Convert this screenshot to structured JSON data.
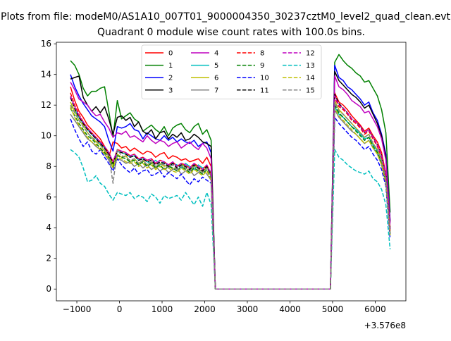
{
  "chart_data": {
    "type": "line",
    "suptitle": "Plots from file: modeM0/AS1A10_007T01_9000004350_30237cztM0_level2_quad_clean.evt",
    "title": "Quadrant 0 module wise count rates with 100.0s bins.",
    "xlabel": "",
    "ylabel": "",
    "x_offset_label": "+3.576e8",
    "xlim": [
      -1480,
      6720
    ],
    "ylim": [
      -0.77,
      16.1
    ],
    "x_ticks": [
      -1000,
      0,
      1000,
      2000,
      3000,
      4000,
      5000,
      6000
    ],
    "y_ticks": [
      0,
      2,
      4,
      6,
      8,
      10,
      12,
      14,
      16
    ],
    "grid": false,
    "legend_position": "top-center",
    "legend_columns": 4,
    "x_segments": {
      "first": {
        "start": -1150,
        "step": 100,
        "count": 34
      },
      "gap_zero": [
        2250,
        4950
      ],
      "second": {
        "start": 4950,
        "step": 100,
        "count": 15
      }
    },
    "series": [
      {
        "name": "0",
        "color": "#ff0000",
        "dash": "solid",
        "seg1": [
          13.2,
          12.3,
          11.6,
          11.2,
          10.7,
          10.4,
          10.1,
          9.8,
          9.3,
          8.6,
          9.6,
          9.5,
          9.2,
          9.3,
          9.0,
          9.2,
          9.0,
          8.8,
          9.0,
          8.9,
          8.6,
          8.8,
          8.9,
          8.5,
          8.7,
          8.6,
          8.4,
          8.5,
          8.3,
          8.4,
          8.5,
          8.2,
          8.6,
          8.0
        ],
        "seg2": [
          0,
          12.8,
          12.2,
          12.0,
          11.7,
          11.3,
          11.0,
          10.7,
          10.3,
          10.5,
          10.0,
          9.6,
          8.9,
          7.5,
          4.0
        ]
      },
      {
        "name": "1",
        "color": "#008000",
        "dash": "solid",
        "seg1": [
          14.9,
          14.6,
          14.0,
          13.1,
          12.6,
          12.9,
          12.9,
          13.1,
          13.2,
          11.6,
          9.9,
          12.3,
          11.1,
          11.3,
          11.5,
          11.1,
          10.9,
          10.3,
          10.5,
          10.7,
          10.4,
          10.2,
          10.6,
          10.0,
          10.5,
          10.7,
          10.8,
          10.4,
          10.2,
          10.6,
          10.8,
          10.1,
          10.4,
          9.7
        ],
        "seg2": [
          0,
          14.8,
          15.3,
          14.9,
          14.6,
          14.4,
          14.1,
          13.9,
          13.5,
          13.6,
          13.1,
          12.6,
          11.7,
          10.2,
          5.0
        ]
      },
      {
        "name": "2",
        "color": "#0000ff",
        "dash": "solid",
        "seg1": [
          14.0,
          13.2,
          12.6,
          12.1,
          11.7,
          11.3,
          11.1,
          10.9,
          10.6,
          9.7,
          9.0,
          10.6,
          10.5,
          10.6,
          10.8,
          10.4,
          10.3,
          9.8,
          10.2,
          10.0,
          9.8,
          9.7,
          10.0,
          9.7,
          9.9,
          9.6,
          9.8,
          9.6,
          9.5,
          9.7,
          9.3,
          9.5,
          9.6,
          8.9
        ],
        "seg2": [
          0,
          14.6,
          13.8,
          13.6,
          13.2,
          13.0,
          12.7,
          12.4,
          12.0,
          12.2,
          11.5,
          11.0,
          10.1,
          8.8,
          4.5
        ]
      },
      {
        "name": "3",
        "color": "#000000",
        "dash": "solid",
        "seg1": [
          13.7,
          13.8,
          13.9,
          12.5,
          12.0,
          11.6,
          11.9,
          11.5,
          11.9,
          11.1,
          10.1,
          11.2,
          11.3,
          11.0,
          11.2,
          10.6,
          10.9,
          10.3,
          10.1,
          10.4,
          9.8,
          10.2,
          10.3,
          9.8,
          10.1,
          9.9,
          10.2,
          9.7,
          9.8,
          10.1,
          9.9,
          9.6,
          9.5,
          9.3
        ],
        "seg2": [
          0,
          14.2,
          13.6,
          13.3,
          13.0,
          12.7,
          12.5,
          12.2,
          11.8,
          12.0,
          11.4,
          10.8,
          10.0,
          8.6,
          4.4
        ]
      },
      {
        "name": "4",
        "color": "#bf00bf",
        "dash": "solid",
        "seg1": [
          13.5,
          13.0,
          12.4,
          12.2,
          12.0,
          11.6,
          11.3,
          11.4,
          10.9,
          10.5,
          9.9,
          10.2,
          10.1,
          10.3,
          9.9,
          10.0,
          9.8,
          9.6,
          10.0,
          9.7,
          9.5,
          9.7,
          9.6,
          9.3,
          9.5,
          9.6,
          9.2,
          9.4,
          9.6,
          9.3,
          9.1,
          9.5,
          9.2,
          8.5
        ],
        "seg2": [
          0,
          13.9,
          13.2,
          13.0,
          12.7,
          12.3,
          12.1,
          11.9,
          11.5,
          11.6,
          11.1,
          10.6,
          9.8,
          8.4,
          4.3
        ]
      },
      {
        "name": "5",
        "color": "#00bfbf",
        "dash": "solid",
        "seg1": [
          12.0,
          11.7,
          11.2,
          10.8,
          10.4,
          10.1,
          9.8,
          9.5,
          9.2,
          8.9,
          8.3,
          9.0,
          8.9,
          8.8,
          8.6,
          8.7,
          8.4,
          8.5,
          8.3,
          8.2,
          8.4,
          8.1,
          8.3,
          8.0,
          8.2,
          8.1,
          7.9,
          8.2,
          8.0,
          7.8,
          8.1,
          7.9,
          8.0,
          7.6
        ],
        "seg2": [
          0,
          11.9,
          11.4,
          11.2,
          10.9,
          10.6,
          10.4,
          10.1,
          9.8,
          9.9,
          9.4,
          9.0,
          8.3,
          7.1,
          3.6
        ]
      },
      {
        "name": "6",
        "color": "#bfbf00",
        "dash": "solid",
        "seg1": [
          12.2,
          11.6,
          11.0,
          10.7,
          10.2,
          9.9,
          9.6,
          9.4,
          9.0,
          8.7,
          8.1,
          8.8,
          8.6,
          8.7,
          8.3,
          8.5,
          8.2,
          8.4,
          8.1,
          8.3,
          7.9,
          8.2,
          8.0,
          8.1,
          7.8,
          8.0,
          8.2,
          7.9,
          7.7,
          8.1,
          7.9,
          7.6,
          8.0,
          7.4
        ],
        "seg2": [
          0,
          12.3,
          11.7,
          11.4,
          11.1,
          10.8,
          10.5,
          10.2,
          9.9,
          10.1,
          9.5,
          9.1,
          8.4,
          7.2,
          3.7
        ]
      },
      {
        "name": "7",
        "color": "#808080",
        "dash": "solid",
        "seg1": [
          11.4,
          11.0,
          10.6,
          10.2,
          9.8,
          9.6,
          9.3,
          9.1,
          8.8,
          8.4,
          7.9,
          8.5,
          8.4,
          8.2,
          8.3,
          8.0,
          8.2,
          7.9,
          8.1,
          7.8,
          8.0,
          7.7,
          7.9,
          7.6,
          7.8,
          7.9,
          7.5,
          7.7,
          7.8,
          7.4,
          7.6,
          7.8,
          7.5,
          7.1
        ],
        "seg2": [
          0,
          11.7,
          11.2,
          10.9,
          10.6,
          10.3,
          10.1,
          9.8,
          9.5,
          9.7,
          9.2,
          8.8,
          8.1,
          6.9,
          3.5
        ]
      },
      {
        "name": "8",
        "color": "#ff0000",
        "dash": "dashed",
        "seg1": [
          12.8,
          12.0,
          11.4,
          10.9,
          10.5,
          10.2,
          9.9,
          9.6,
          9.3,
          8.9,
          8.3,
          9.1,
          9.0,
          8.9,
          8.7,
          8.8,
          8.5,
          8.6,
          8.4,
          8.5,
          8.2,
          8.4,
          8.3,
          8.1,
          8.3,
          8.0,
          8.2,
          8.1,
          7.9,
          8.2,
          8.0,
          7.8,
          8.1,
          7.5
        ],
        "seg2": [
          0,
          12.5,
          11.9,
          11.7,
          11.4,
          11.0,
          10.8,
          10.5,
          10.1,
          10.3,
          9.8,
          9.3,
          8.6,
          7.3,
          3.8
        ]
      },
      {
        "name": "9",
        "color": "#008000",
        "dash": "dashed",
        "seg1": [
          11.8,
          11.3,
          10.8,
          10.4,
          10.0,
          9.8,
          9.5,
          9.2,
          8.9,
          8.6,
          8.0,
          8.7,
          8.6,
          8.5,
          8.3,
          8.4,
          8.1,
          8.3,
          8.0,
          8.2,
          7.9,
          8.1,
          7.8,
          8.0,
          7.9,
          7.7,
          8.0,
          7.8,
          7.6,
          7.9,
          7.7,
          7.5,
          7.8,
          7.2
        ],
        "seg2": [
          0,
          12.0,
          11.5,
          11.2,
          10.9,
          10.6,
          10.3,
          10.0,
          9.7,
          9.9,
          9.3,
          8.9,
          8.2,
          7.0,
          3.6
        ]
      },
      {
        "name": "10",
        "color": "#0000ff",
        "dash": "dashed",
        "seg1": [
          11.1,
          10.4,
          9.8,
          9.3,
          9.6,
          9.0,
          8.8,
          9.1,
          8.6,
          8.2,
          7.7,
          8.5,
          8.1,
          7.8,
          7.6,
          7.9,
          7.5,
          7.7,
          7.8,
          7.4,
          7.5,
          7.7,
          7.3,
          7.6,
          7.4,
          7.2,
          7.5,
          7.1,
          6.8,
          7.2,
          7.0,
          7.3,
          7.1,
          6.9
        ],
        "seg2": [
          0,
          11.2,
          10.8,
          10.5,
          10.2,
          9.9,
          9.7,
          9.4,
          9.1,
          9.3,
          8.8,
          8.4,
          7.8,
          6.7,
          3.3
        ]
      },
      {
        "name": "11",
        "color": "#000000",
        "dash": "dashed",
        "seg1": [
          12.5,
          11.8,
          11.2,
          10.8,
          10.4,
          10.1,
          9.8,
          9.5,
          9.2,
          8.8,
          8.2,
          9.0,
          8.9,
          8.8,
          8.6,
          8.7,
          8.4,
          8.5,
          8.3,
          8.4,
          8.1,
          8.3,
          8.2,
          8.0,
          8.2,
          7.9,
          8.1,
          8.0,
          7.8,
          8.1,
          7.9,
          7.7,
          8.0,
          7.4
        ],
        "seg2": [
          0,
          12.7,
          12.1,
          11.8,
          11.5,
          11.1,
          10.9,
          10.6,
          10.2,
          10.4,
          9.9,
          9.4,
          8.7,
          7.4,
          3.9
        ]
      },
      {
        "name": "12",
        "color": "#bf00bf",
        "dash": "dashed",
        "seg1": [
          12.6,
          11.9,
          11.3,
          10.9,
          10.5,
          10.2,
          9.9,
          9.6,
          9.3,
          8.9,
          8.3,
          9.1,
          9.0,
          8.9,
          8.7,
          8.8,
          8.5,
          8.6,
          8.4,
          8.5,
          8.2,
          8.4,
          8.3,
          8.1,
          8.3,
          8.0,
          8.2,
          8.1,
          7.9,
          8.2,
          8.0,
          7.8,
          8.1,
          7.5
        ],
        "seg2": [
          0,
          12.6,
          12.0,
          11.8,
          11.5,
          11.1,
          10.9,
          10.6,
          10.2,
          10.4,
          9.9,
          9.4,
          8.7,
          7.4,
          3.9
        ]
      },
      {
        "name": "13",
        "color": "#00bfbf",
        "dash": "dashed",
        "seg1": [
          9.1,
          8.9,
          8.6,
          7.9,
          7.0,
          7.1,
          7.4,
          6.9,
          6.7,
          6.2,
          5.8,
          6.3,
          6.2,
          6.1,
          6.3,
          5.9,
          6.1,
          6.0,
          5.7,
          6.2,
          6.0,
          5.6,
          6.1,
          5.9,
          6.0,
          6.1,
          5.8,
          6.3,
          5.9,
          5.5,
          6.0,
          5.4,
          6.3,
          5.5
        ],
        "seg2": [
          0,
          9.1,
          8.6,
          8.4,
          8.1,
          7.9,
          7.7,
          7.6,
          7.5,
          7.7,
          7.2,
          7.0,
          6.5,
          5.5,
          2.6
        ]
      },
      {
        "name": "14",
        "color": "#bfbf00",
        "dash": "dashed",
        "seg1": [
          11.9,
          11.2,
          10.7,
          10.3,
          9.9,
          9.6,
          9.4,
          9.1,
          8.8,
          8.5,
          7.9,
          8.6,
          8.5,
          8.3,
          8.2,
          8.3,
          8.0,
          8.2,
          7.9,
          8.1,
          7.8,
          8.0,
          7.8,
          7.9,
          7.7,
          7.6,
          7.9,
          7.7,
          7.5,
          7.8,
          7.6,
          7.4,
          7.7,
          7.1
        ],
        "seg2": [
          0,
          11.8,
          11.3,
          11.0,
          10.7,
          10.4,
          10.1,
          9.8,
          9.5,
          9.7,
          9.2,
          8.8,
          8.1,
          6.9,
          3.5
        ]
      },
      {
        "name": "15",
        "color": "#808080",
        "dash": "dashed",
        "seg1": [
          12.0,
          11.5,
          11.0,
          10.6,
          10.2,
          9.9,
          9.7,
          9.4,
          9.1,
          8.7,
          6.9,
          9.1,
          8.7,
          8.6,
          8.4,
          8.5,
          8.2,
          8.4,
          8.1,
          8.3,
          8.0,
          8.2,
          8.1,
          7.9,
          8.1,
          7.8,
          8.0,
          7.9,
          7.7,
          8.0,
          7.8,
          7.6,
          7.9,
          7.3
        ],
        "seg2": [
          0,
          12.2,
          11.6,
          11.4,
          11.1,
          10.8,
          10.5,
          10.2,
          9.9,
          10.1,
          9.5,
          9.1,
          8.4,
          7.2,
          3.6
        ]
      }
    ]
  }
}
